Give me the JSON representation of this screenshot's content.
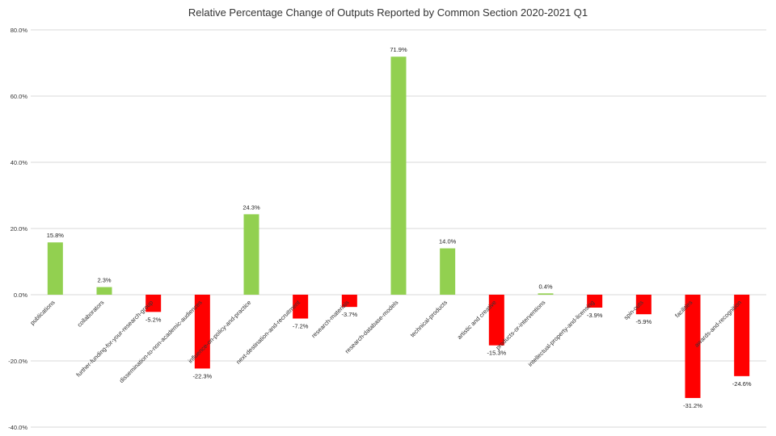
{
  "chart_data": {
    "type": "bar",
    "title": "Relative Percentage Change of Outputs Reported by Common Section  2020-2021 Q1",
    "categories": [
      "publications",
      "collaborators",
      "further-funding-for-your-research-group",
      "dissemination-to-non-academic-audiences",
      "influence-on-policy-and-practice",
      "next-destination-and-recruitment",
      "research-materials",
      "research-database-models",
      "technical-products",
      "artistic and creative",
      "products-or-interventions",
      "intellectual-property-and-licensing",
      "spin-outs",
      "facilities",
      "awards-and-recognition"
    ],
    "values": [
      15.8,
      2.3,
      -5.2,
      -22.3,
      24.3,
      -7.2,
      -3.7,
      71.9,
      14.0,
      -15.3,
      0.4,
      -3.9,
      -5.9,
      -31.2,
      -24.6
    ],
    "data_labels": [
      "15.8%",
      "2.3%",
      "-5.2%",
      "-22.3%",
      "24.3%",
      "-7.2%",
      "-3.7%",
      "71.9%",
      "14.0%",
      "-15.3%",
      "0.4%",
      "-3.9%",
      "-5.9%",
      "-31.2%",
      "-24.6%"
    ],
    "ylim": [
      -40,
      80
    ],
    "yticks": [
      80,
      60,
      40,
      20,
      0,
      -20,
      -40
    ],
    "ytick_labels": [
      "80.0%",
      "60.0%",
      "40.0%",
      "20.0%",
      "0.0%",
      "-20.0%",
      "-40.0%"
    ],
    "xlabel": "",
    "ylabel": "",
    "grid": true,
    "legend": "none",
    "colors": {
      "positive": "#92d050",
      "negative": "#ff0000",
      "grid": "#d9d9d9",
      "text": "#333333"
    }
  }
}
